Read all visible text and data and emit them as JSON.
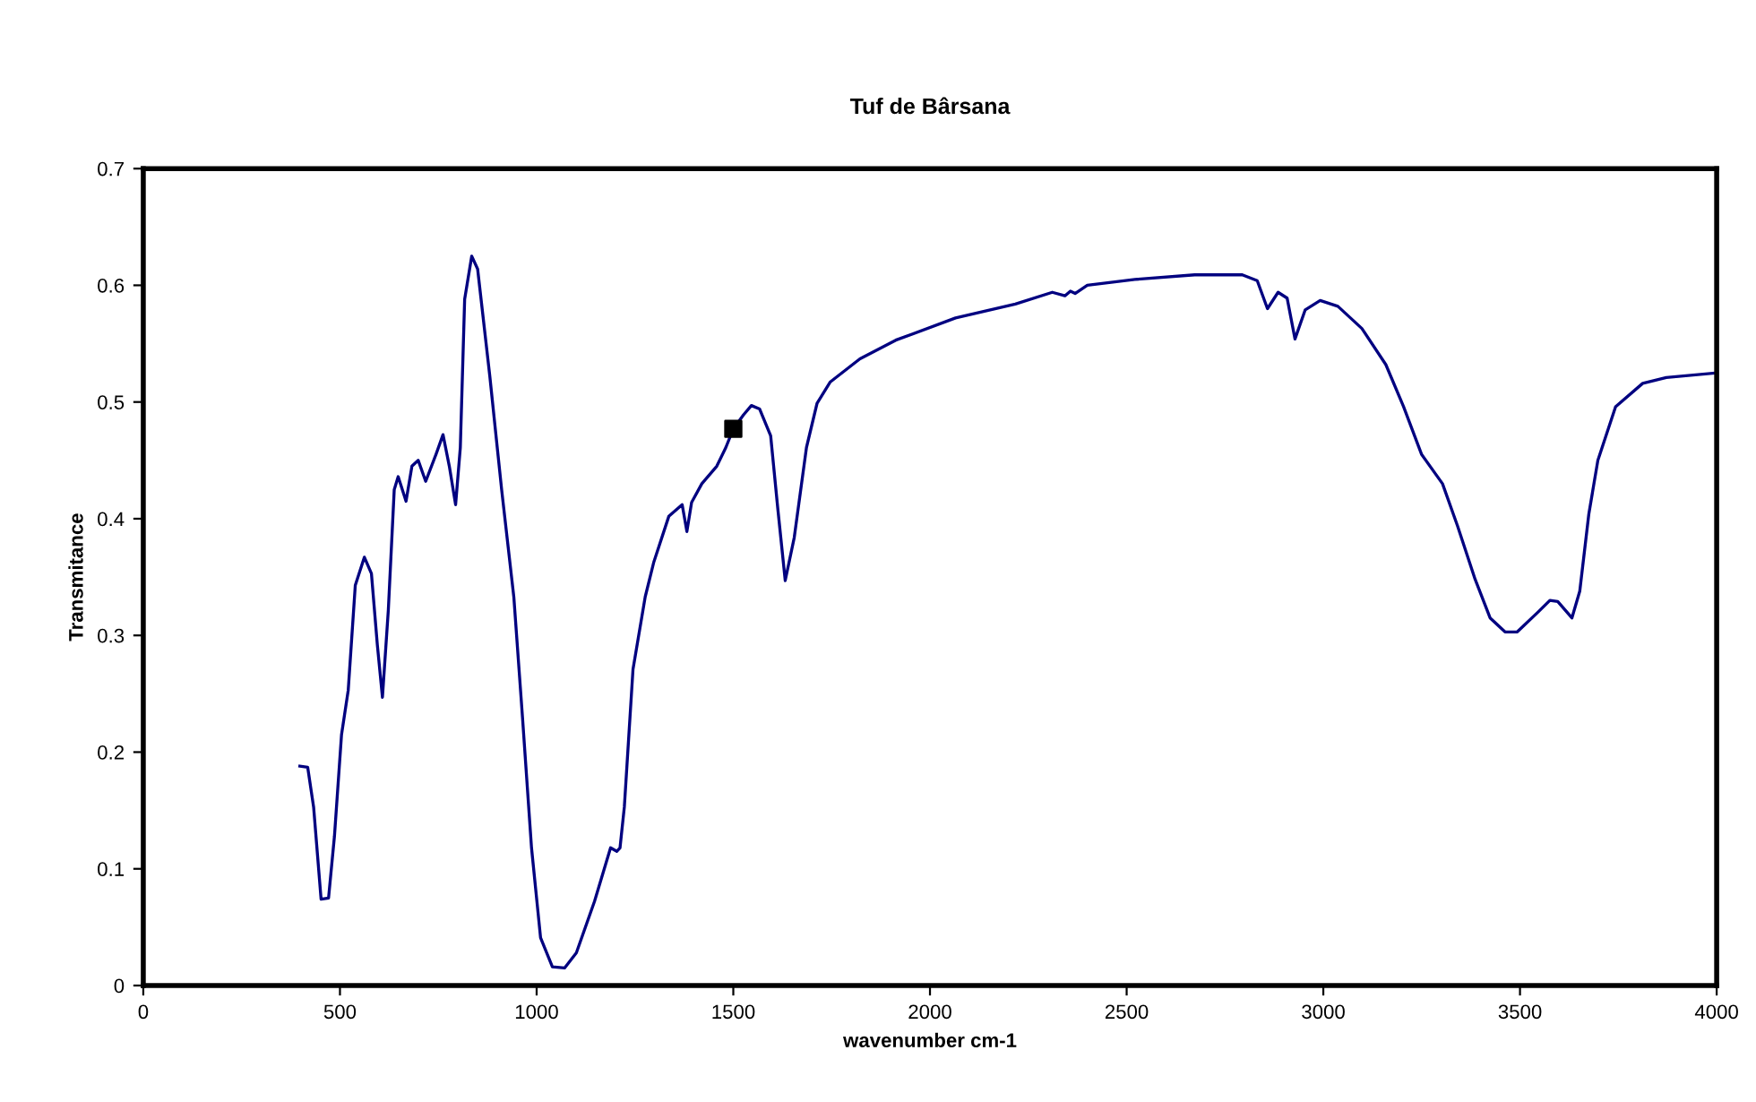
{
  "chart_data": {
    "type": "line",
    "title": "Tuf de Bârsana",
    "xlabel": "wavenumber cm-1",
    "ylabel": "Transmitance",
    "xlim": [
      0,
      4000
    ],
    "xticks": [
      0,
      500,
      1000,
      1500,
      2000,
      2500,
      3000,
      3500,
      4000
    ],
    "ylim": [
      0,
      0.7
    ],
    "yticks": [
      0,
      0.1,
      0.2,
      0.3,
      0.4,
      0.5,
      0.6,
      0.7
    ],
    "grid": false,
    "legend": false,
    "series": [
      {
        "color": "#000080",
        "marker": "none",
        "line_style": "solid",
        "x": [
          398,
          418,
          433,
          452,
          471,
          486,
          504,
          521,
          539,
          562,
          580,
          595,
          608,
          623,
          638,
          648,
          668,
          683,
          699,
          718,
          744,
          762,
          778,
          794,
          806,
          817,
          835,
          850,
          881,
          911,
          942,
          964,
          987,
          1010,
          1040,
          1071,
          1101,
          1147,
          1188,
          1204,
          1212,
          1223,
          1245,
          1276,
          1298,
          1336,
          1370,
          1382,
          1394,
          1420,
          1458,
          1481,
          1500,
          1526,
          1546,
          1567,
          1595,
          1613,
          1632,
          1655,
          1686,
          1713,
          1746,
          1822,
          1913,
          2065,
          2217,
          2311,
          2343,
          2357,
          2369,
          2400,
          2521,
          2673,
          2794,
          2832,
          2858,
          2885,
          2908,
          2928,
          2954,
          2992,
          3037,
          3098,
          3159,
          3204,
          3250,
          3303,
          3341,
          3386,
          3424,
          3462,
          3493,
          3546,
          3576,
          3596,
          3632,
          3652,
          3675,
          3698,
          3743,
          3812,
          3872,
          4000
        ],
        "values": [
          0.188,
          0.187,
          0.153,
          0.074,
          0.075,
          0.128,
          0.215,
          0.253,
          0.343,
          0.367,
          0.353,
          0.292,
          0.247,
          0.322,
          0.425,
          0.436,
          0.415,
          0.445,
          0.45,
          0.432,
          0.455,
          0.472,
          0.445,
          0.412,
          0.461,
          0.588,
          0.625,
          0.614,
          0.522,
          0.425,
          0.333,
          0.23,
          0.118,
          0.041,
          0.016,
          0.015,
          0.028,
          0.072,
          0.118,
          0.115,
          0.118,
          0.153,
          0.271,
          0.333,
          0.363,
          0.402,
          0.412,
          0.389,
          0.414,
          0.43,
          0.445,
          0.461,
          0.477,
          0.489,
          0.497,
          0.494,
          0.471,
          0.409,
          0.347,
          0.384,
          0.461,
          0.499,
          0.517,
          0.537,
          0.553,
          0.572,
          0.584,
          0.594,
          0.591,
          0.595,
          0.593,
          0.6,
          0.605,
          0.609,
          0.609,
          0.604,
          0.58,
          0.594,
          0.589,
          0.554,
          0.579,
          0.587,
          0.582,
          0.563,
          0.532,
          0.496,
          0.455,
          0.43,
          0.394,
          0.348,
          0.315,
          0.303,
          0.303,
          0.32,
          0.33,
          0.329,
          0.315,
          0.338,
          0.404,
          0.45,
          0.496,
          0.516,
          0.521,
          0.525
        ]
      },
      {
        "type": "scatter",
        "color": "#000000",
        "marker": "square",
        "x": [
          1500
        ],
        "values": [
          0.477
        ]
      }
    ]
  }
}
